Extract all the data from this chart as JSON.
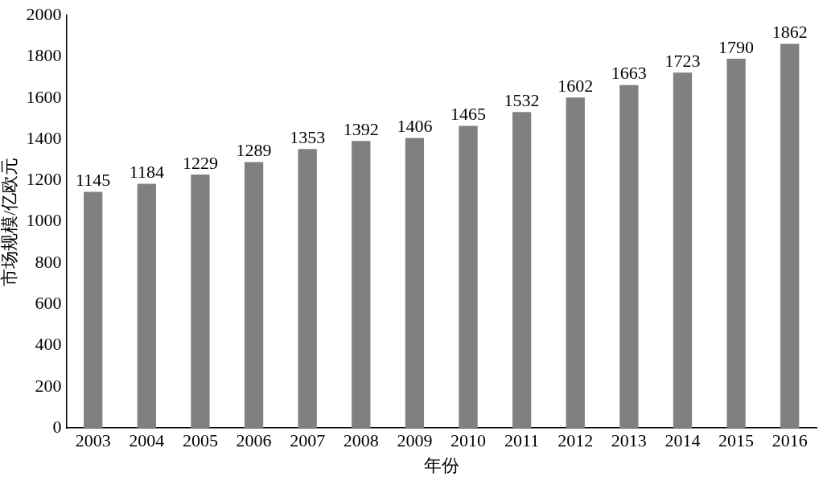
{
  "chart_data": {
    "type": "bar",
    "xlabel": "年份",
    "ylabel": "市场规模/亿欧元",
    "categories": [
      "2003",
      "2004",
      "2005",
      "2006",
      "2007",
      "2008",
      "2009",
      "2010",
      "2011",
      "2012",
      "2013",
      "2014",
      "2015",
      "2016"
    ],
    "values": [
      1145,
      1184,
      1229,
      1289,
      1353,
      1392,
      1406,
      1465,
      1532,
      1602,
      1663,
      1723,
      1790,
      1862
    ],
    "color": "#808080",
    "ylim": [
      0,
      2000
    ],
    "yticks": [
      0,
      200,
      400,
      600,
      800,
      1000,
      1200,
      1400,
      1600,
      1800,
      2000
    ],
    "grid": false,
    "data_labels": true
  }
}
